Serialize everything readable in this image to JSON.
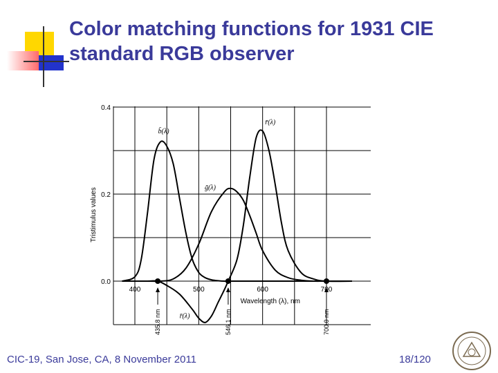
{
  "slide": {
    "title_line1": "Color matching functions for 1931 CIE",
    "title_line2": "standard RGB observer",
    "footer_left": "CIC-19, San Jose, CA, 8 November 2011",
    "footer_right": "18/120"
  },
  "colors": {
    "title": "#3a3a9a",
    "deco_yellow": "#ffd700",
    "deco_red": "#ff6a6a",
    "deco_blue": "#2233cc",
    "curve": "#000000",
    "grid": "#000000"
  },
  "chart_data": {
    "type": "line",
    "title": "",
    "xlabel": "Wavelength (λ), nm",
    "ylabel": "Tristimulus values",
    "xlim": [
      360,
      740
    ],
    "ylim": [
      -0.1,
      0.4
    ],
    "x_ticks": [
      400,
      500,
      600,
      700
    ],
    "y_ticks": [
      {
        "value": 0.4,
        "label": "0.4"
      },
      {
        "value": 0.2,
        "label": "0.2"
      },
      {
        "value": 0.0,
        "label": "0.0"
      }
    ],
    "grid": true,
    "primaries": [
      {
        "value": 435.8,
        "label": "435.8 nm"
      },
      {
        "value": 546.1,
        "label": "546.1 nm"
      },
      {
        "value": 700.0,
        "label": "700.0 nm"
      }
    ],
    "series": [
      {
        "name": "b̄(λ)",
        "x": [
          380,
          400,
          410,
          420,
          430,
          440,
          450,
          460,
          470,
          480,
          490,
          500,
          510,
          520,
          530,
          540,
          560,
          600,
          740
        ],
        "y": [
          0.0,
          0.01,
          0.05,
          0.16,
          0.28,
          0.32,
          0.31,
          0.27,
          0.19,
          0.11,
          0.05,
          0.02,
          0.008,
          0.003,
          0.001,
          0.0,
          0.0,
          0.0,
          0.0
        ]
      },
      {
        "name": "ḡ(λ)",
        "x": [
          380,
          420,
          440,
          460,
          480,
          500,
          520,
          540,
          550,
          560,
          570,
          580,
          590,
          600,
          620,
          640,
          660,
          680,
          700,
          740
        ],
        "y": [
          0.0,
          0.0,
          0.0,
          0.005,
          0.03,
          0.085,
          0.16,
          0.205,
          0.213,
          0.205,
          0.185,
          0.15,
          0.11,
          0.07,
          0.025,
          0.008,
          0.002,
          0.0,
          0.0,
          0.0
        ]
      },
      {
        "name": "r̄(λ)",
        "x": [
          380,
          420,
          435.8,
          450,
          470,
          490,
          500,
          510,
          520,
          530,
          540,
          546.1,
          560,
          570,
          580,
          590,
          600,
          610,
          620,
          630,
          640,
          660,
          680,
          700,
          740
        ],
        "y": [
          0.0,
          0.0,
          0.0,
          -0.01,
          -0.03,
          -0.065,
          -0.085,
          -0.095,
          -0.08,
          -0.05,
          -0.02,
          0.0,
          0.05,
          0.13,
          0.24,
          0.33,
          0.345,
          0.3,
          0.22,
          0.13,
          0.07,
          0.02,
          0.005,
          0.0,
          0.0
        ]
      }
    ],
    "annotations": [
      {
        "text": "b̄(λ)",
        "x": 445,
        "y": 0.34
      },
      {
        "text": "ḡ(λ)",
        "x": 518,
        "y": 0.21
      },
      {
        "text": "r̄(λ)",
        "x": 612,
        "y": 0.36
      },
      {
        "text": "r̄(λ)",
        "x": 478,
        "y": -0.085
      }
    ]
  }
}
